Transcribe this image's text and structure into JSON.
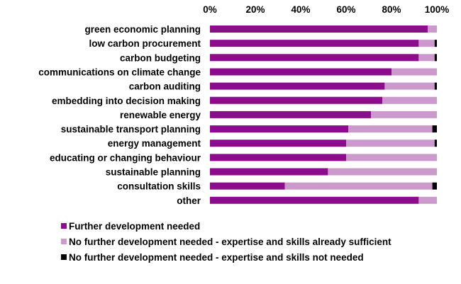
{
  "chart_data": {
    "type": "bar",
    "orientation": "horizontal",
    "stacked": "percent",
    "title": "",
    "xlabel": "",
    "ylabel": "",
    "xlim": [
      0,
      100
    ],
    "x_ticks": [
      "0%",
      "20%",
      "40%",
      "60%",
      "80%",
      "100%"
    ],
    "x_axis_position": "top",
    "grid": false,
    "legend_position": "bottom",
    "categories": [
      "green economic planning",
      "low carbon procurement",
      "carbon budgeting",
      "communications on climate change",
      "carbon auditing",
      "embedding into decision making",
      "renewable energy",
      "sustainable transport planning",
      "energy management",
      "educating or changing behaviour",
      "sustainable planning",
      "consultation skills",
      "other"
    ],
    "series": [
      {
        "name": "Further development needed",
        "color": "#8b0d8b",
        "values": [
          96,
          92,
          92,
          80,
          77,
          76,
          71,
          61,
          60,
          60,
          52,
          33,
          92
        ]
      },
      {
        "name": "No further development needed - expertise and skills already sufficient",
        "color": "#cc99cc",
        "values": [
          4,
          7,
          7,
          20,
          22,
          24,
          29,
          37,
          39,
          40,
          48,
          65,
          8
        ]
      },
      {
        "name": "No further development needed - expertise and skills not needed",
        "color": "#000000",
        "values": [
          0,
          1,
          1,
          0,
          1,
          0,
          0,
          2,
          1,
          0,
          0,
          2,
          0
        ]
      }
    ]
  }
}
